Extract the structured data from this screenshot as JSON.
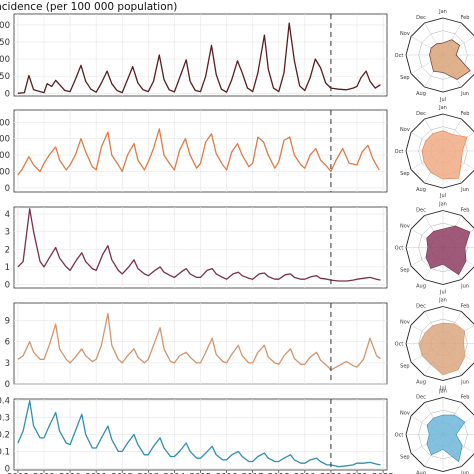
{
  "chart_data": {
    "type": "line",
    "ylabel": "Incidence (per 100 000 population)",
    "x_ticks": [
      "2008",
      "2009",
      "2010",
      "2011",
      "2012",
      "2013",
      "2014",
      "2015",
      "2016",
      "2017",
      "2018",
      "2019",
      "2020",
      "2021",
      "2022"
    ],
    "x_range": [
      2007.85,
      2022.15
    ],
    "reference_line_x": 2020.0,
    "grid": true,
    "month_labels": [
      "Jan",
      "Feb",
      "Mar",
      "Apr",
      "May",
      "Jun",
      "Jul",
      "Aug",
      "Sep",
      "Oct",
      "Nov",
      "Dec"
    ],
    "series": [
      {
        "color": "#5a1e1e",
        "fill": "#d9a579",
        "y_ticks": [
          "0",
          "50",
          "100",
          "150",
          "200"
        ],
        "y_tick_values": [
          0,
          50,
          100,
          150,
          200
        ],
        "ylim": [
          -8,
          232
        ],
        "x": [
          2008.0,
          2008.25,
          2008.42,
          2008.6,
          2008.85,
          2009.0,
          2009.12,
          2009.3,
          2009.45,
          2009.6,
          2009.8,
          2010.0,
          2010.2,
          2010.42,
          2010.6,
          2010.8,
          2011.0,
          2011.2,
          2011.42,
          2011.6,
          2011.8,
          2012.0,
          2012.2,
          2012.4,
          2012.6,
          2012.8,
          2013.0,
          2013.2,
          2013.42,
          2013.6,
          2013.8,
          2014.0,
          2014.2,
          2014.45,
          2014.6,
          2014.8,
          2015.0,
          2015.2,
          2015.42,
          2015.6,
          2015.8,
          2016.0,
          2016.2,
          2016.42,
          2016.6,
          2016.8,
          2017.0,
          2017.2,
          2017.45,
          2017.6,
          2017.8,
          2018.0,
          2018.2,
          2018.4,
          2018.6,
          2018.8,
          2019.0,
          2019.2,
          2019.4,
          2019.6,
          2019.8,
          2020.0,
          2020.3,
          2020.6,
          2020.85,
          2021.0,
          2021.15,
          2021.35,
          2021.5,
          2021.7,
          2021.9
        ],
        "y": [
          0,
          2,
          52,
          10,
          5,
          2,
          28,
          20,
          38,
          25,
          8,
          5,
          40,
          82,
          35,
          12,
          3,
          30,
          65,
          28,
          8,
          2,
          40,
          78,
          30,
          10,
          5,
          35,
          112,
          40,
          10,
          4,
          45,
          98,
          35,
          8,
          5,
          50,
          140,
          55,
          12,
          3,
          40,
          95,
          60,
          15,
          5,
          60,
          170,
          70,
          15,
          5,
          60,
          205,
          95,
          22,
          8,
          45,
          100,
          75,
          30,
          15,
          12,
          10,
          15,
          20,
          45,
          65,
          35,
          15,
          25
        ]
      },
      {
        "color": "#e07b45",
        "fill": "#f0aa85",
        "y_ticks": [
          "0",
          "100",
          "200",
          "300",
          "400"
        ],
        "y_tick_values": [
          0,
          100,
          200,
          300,
          400
        ],
        "ylim": [
          -25,
          475
        ],
        "x": [
          2008.0,
          2008.15,
          2008.42,
          2008.6,
          2008.85,
          2009.0,
          2009.2,
          2009.45,
          2009.6,
          2009.85,
          2010.0,
          2010.2,
          2010.42,
          2010.6,
          2010.85,
          2011.0,
          2011.2,
          2011.45,
          2011.6,
          2011.85,
          2012.0,
          2012.2,
          2012.45,
          2012.6,
          2012.85,
          2013.0,
          2013.2,
          2013.42,
          2013.6,
          2013.85,
          2014.0,
          2014.2,
          2014.42,
          2014.6,
          2014.85,
          2015.0,
          2015.2,
          2015.42,
          2015.6,
          2015.85,
          2016.0,
          2016.2,
          2016.42,
          2016.6,
          2016.85,
          2017.0,
          2017.2,
          2017.42,
          2017.6,
          2017.85,
          2018.0,
          2018.2,
          2018.42,
          2018.6,
          2018.85,
          2019.0,
          2019.2,
          2019.42,
          2019.6,
          2019.85,
          2020.0,
          2020.2,
          2020.45,
          2020.7,
          2021.0,
          2021.2,
          2021.42,
          2021.6,
          2021.85
        ],
        "y": [
          80,
          110,
          190,
          140,
          100,
          150,
          200,
          250,
          170,
          110,
          140,
          200,
          300,
          220,
          130,
          110,
          250,
          340,
          200,
          140,
          100,
          200,
          270,
          170,
          110,
          160,
          240,
          360,
          200,
          140,
          110,
          230,
          300,
          200,
          120,
          150,
          280,
          330,
          210,
          140,
          110,
          220,
          270,
          200,
          130,
          150,
          310,
          280,
          200,
          120,
          160,
          290,
          310,
          200,
          140,
          120,
          200,
          240,
          170,
          130,
          100,
          170,
          240,
          150,
          140,
          220,
          260,
          180,
          110
        ]
      },
      {
        "color": "#7a2f4f",
        "fill": "#8e3d62",
        "y_ticks": [
          "0",
          "1",
          "2",
          "3",
          "4"
        ],
        "y_tick_values": [
          0,
          1,
          2,
          3,
          4
        ],
        "ylim": [
          -0.2,
          4.4
        ],
        "x": [
          2008.0,
          2008.2,
          2008.45,
          2008.6,
          2008.85,
          2009.0,
          2009.2,
          2009.45,
          2009.6,
          2009.85,
          2010.0,
          2010.25,
          2010.45,
          2010.6,
          2010.85,
          2011.0,
          2011.25,
          2011.45,
          2011.6,
          2011.85,
          2012.0,
          2012.25,
          2012.45,
          2012.6,
          2012.85,
          2013.0,
          2013.25,
          2013.45,
          2013.6,
          2013.85,
          2014.0,
          2014.25,
          2014.45,
          2014.6,
          2014.85,
          2015.0,
          2015.25,
          2015.45,
          2015.6,
          2015.85,
          2016.0,
          2016.25,
          2016.45,
          2016.6,
          2016.85,
          2017.0,
          2017.25,
          2017.45,
          2017.6,
          2017.85,
          2018.0,
          2018.25,
          2018.45,
          2018.6,
          2018.85,
          2019.0,
          2019.25,
          2019.45,
          2019.6,
          2019.85,
          2020.0,
          2020.3,
          2020.6,
          2020.85,
          2021.0,
          2021.25,
          2021.5,
          2021.75,
          2021.9
        ],
        "y": [
          1.0,
          1.3,
          4.3,
          3.0,
          1.3,
          1.0,
          1.5,
          2.1,
          1.5,
          1.0,
          0.8,
          1.4,
          1.8,
          1.3,
          0.9,
          0.8,
          1.7,
          2.2,
          1.4,
          0.8,
          0.6,
          1.0,
          1.4,
          0.9,
          0.6,
          0.5,
          0.8,
          1.0,
          0.7,
          0.5,
          0.4,
          0.7,
          0.9,
          0.6,
          0.4,
          0.4,
          0.8,
          0.9,
          0.6,
          0.4,
          0.3,
          0.6,
          0.7,
          0.5,
          0.35,
          0.3,
          0.6,
          0.65,
          0.45,
          0.3,
          0.3,
          0.55,
          0.6,
          0.4,
          0.3,
          0.3,
          0.45,
          0.5,
          0.35,
          0.3,
          0.25,
          0.2,
          0.2,
          0.25,
          0.3,
          0.35,
          0.4,
          0.3,
          0.25
        ]
      },
      {
        "color": "#d4956a",
        "fill": "#dba67f",
        "y_ticks": [
          "0",
          "3",
          "6",
          "9"
        ],
        "y_tick_values": [
          0,
          3,
          6,
          9
        ],
        "ylim": [
          0,
          11.5
        ],
        "x": [
          2008.0,
          2008.2,
          2008.45,
          2008.6,
          2008.85,
          2009.0,
          2009.2,
          2009.45,
          2009.6,
          2009.85,
          2010.0,
          2010.2,
          2010.45,
          2010.6,
          2010.85,
          2011.0,
          2011.2,
          2011.45,
          2011.6,
          2011.85,
          2012.0,
          2012.2,
          2012.45,
          2012.6,
          2012.85,
          2013.0,
          2013.2,
          2013.45,
          2013.6,
          2013.85,
          2014.0,
          2014.2,
          2014.45,
          2014.6,
          2014.85,
          2015.0,
          2015.2,
          2015.45,
          2015.6,
          2015.85,
          2016.0,
          2016.2,
          2016.45,
          2016.6,
          2016.85,
          2017.0,
          2017.2,
          2017.45,
          2017.6,
          2017.85,
          2018.0,
          2018.2,
          2018.45,
          2018.6,
          2018.85,
          2019.0,
          2019.2,
          2019.45,
          2019.6,
          2019.85,
          2020.0,
          2020.3,
          2020.6,
          2020.85,
          2021.0,
          2021.25,
          2021.5,
          2021.75,
          2021.9
        ],
        "y": [
          3.5,
          4.0,
          6.0,
          4.5,
          3.5,
          3.5,
          5.5,
          8.5,
          5.0,
          3.5,
          3.0,
          3.8,
          5.0,
          4.0,
          3.2,
          3.5,
          5.5,
          10.0,
          5.5,
          3.5,
          3.0,
          4.0,
          5.0,
          3.8,
          3.0,
          3.5,
          5.5,
          8.0,
          5.0,
          3.2,
          3.0,
          4.0,
          4.5,
          3.8,
          3.0,
          3.0,
          4.5,
          6.5,
          4.2,
          3.2,
          3.0,
          4.2,
          5.5,
          4.0,
          3.0,
          3.0,
          4.5,
          5.5,
          3.8,
          3.0,
          2.8,
          4.0,
          5.0,
          3.6,
          2.8,
          2.8,
          3.8,
          4.5,
          3.4,
          2.6,
          2.0,
          2.6,
          3.2,
          2.6,
          2.4,
          3.5,
          6.5,
          4.0,
          3.6
        ]
      },
      {
        "color": "#2f8fb2",
        "fill": "#6fb6d8",
        "y_ticks": [
          "0",
          "0.1",
          "0.2",
          "0.3",
          "0.4"
        ],
        "y_tick_values": [
          0,
          0.1,
          0.2,
          0.3,
          0.4
        ],
        "ylim": [
          -0.01,
          0.41
        ],
        "x": [
          2008.0,
          2008.2,
          2008.45,
          2008.6,
          2008.85,
          2009.0,
          2009.2,
          2009.45,
          2009.6,
          2009.85,
          2010.0,
          2010.2,
          2010.45,
          2010.6,
          2010.85,
          2011.0,
          2011.2,
          2011.45,
          2011.6,
          2011.85,
          2012.0,
          2012.2,
          2012.45,
          2012.6,
          2012.85,
          2013.0,
          2013.2,
          2013.45,
          2013.6,
          2013.85,
          2014.0,
          2014.2,
          2014.45,
          2014.6,
          2014.85,
          2015.0,
          2015.2,
          2015.45,
          2015.6,
          2015.85,
          2016.0,
          2016.2,
          2016.45,
          2016.6,
          2016.85,
          2017.0,
          2017.2,
          2017.45,
          2017.6,
          2017.85,
          2018.0,
          2018.2,
          2018.45,
          2018.6,
          2018.85,
          2019.0,
          2019.2,
          2019.45,
          2019.6,
          2019.85,
          2020.0,
          2020.3,
          2020.6,
          2020.85,
          2021.0,
          2021.25,
          2021.5,
          2021.75,
          2021.9
        ],
        "y": [
          0.15,
          0.22,
          0.4,
          0.25,
          0.18,
          0.18,
          0.25,
          0.33,
          0.22,
          0.15,
          0.14,
          0.22,
          0.32,
          0.2,
          0.12,
          0.12,
          0.18,
          0.25,
          0.17,
          0.1,
          0.1,
          0.15,
          0.2,
          0.14,
          0.08,
          0.08,
          0.13,
          0.18,
          0.12,
          0.07,
          0.07,
          0.1,
          0.15,
          0.1,
          0.06,
          0.06,
          0.09,
          0.13,
          0.08,
          0.05,
          0.05,
          0.08,
          0.1,
          0.07,
          0.04,
          0.04,
          0.07,
          0.09,
          0.06,
          0.04,
          0.04,
          0.06,
          0.08,
          0.05,
          0.03,
          0.03,
          0.05,
          0.06,
          0.04,
          0.02,
          0.02,
          0.01,
          0.015,
          0.02,
          0.03,
          0.03,
          0.035,
          0.025,
          0.02
        ]
      }
    ]
  }
}
